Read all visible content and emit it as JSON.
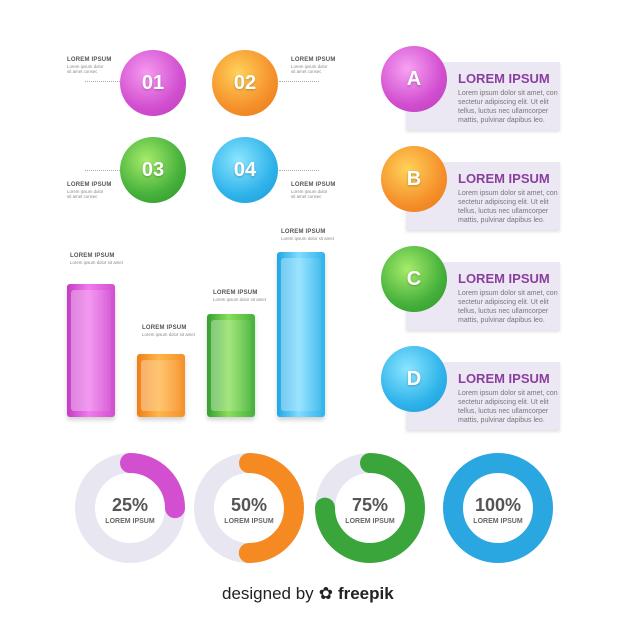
{
  "numbered": [
    {
      "label": "01",
      "title": "LOREM IPSUM",
      "text": [
        "Lorem ipsum dolor",
        "sit amet consec"
      ]
    },
    {
      "label": "02",
      "title": "LOREM IPSUM",
      "text": [
        "Lorem ipsum dolor",
        "sit amet consec"
      ]
    },
    {
      "label": "03",
      "title": "LOREM IPSUM",
      "text": [
        "Lorem ipsum dolor",
        "sit amet consec"
      ]
    },
    {
      "label": "04",
      "title": "LOREM IPSUM",
      "text": [
        "Lorem ipsum dolor",
        "sit amet consec"
      ]
    }
  ],
  "bars": [
    {
      "title": "LOREM IPSUM",
      "text": [
        "Lorem ipsum dolor sit amet"
      ]
    },
    {
      "title": "LOREM IPSUM",
      "text": [
        "Lorem ipsum dolor sit amet"
      ]
    },
    {
      "title": "LOREM IPSUM",
      "text": [
        "Lorem ipsum dolor sit amet"
      ]
    },
    {
      "title": "LOREM IPSUM",
      "text": [
        "Lorem ipsum dolor sit amet"
      ]
    }
  ],
  "letter_cards": [
    {
      "letter": "A",
      "title": "LOREM IPSUM",
      "lines": [
        "Lorem ipsum dolor sit amet, con",
        "sectetur adipiscing elit. Ut elit",
        "tellus, luctus nec ullamcorper",
        "mattis, pulvinar dapibus leo."
      ]
    },
    {
      "letter": "B",
      "title": "LOREM IPSUM",
      "lines": [
        "Lorem ipsum dolor sit amet, con",
        "sectetur adipiscing elit. Ut elit",
        "tellus, luctus nec ullamcorper",
        "mattis, pulvinar dapibus leo."
      ]
    },
    {
      "letter": "C",
      "title": "LOREM IPSUM",
      "lines": [
        "Lorem ipsum dolor sit amet, con",
        "sectetur adipiscing elit. Ut elit",
        "tellus, luctus nec ullamcorper",
        "mattis, pulvinar dapibus leo."
      ]
    },
    {
      "letter": "D",
      "title": "LOREM IPSUM",
      "lines": [
        "Lorem ipsum dolor sit amet, con",
        "sectetur adipiscing elit. Ut elit",
        "tellus, luctus nec ullamcorper",
        "mattis, pulvinar dapibus leo."
      ]
    }
  ],
  "progress": [
    {
      "value": "25%",
      "label": "LOREM IPSUM",
      "fraction": 0.25,
      "color": "#d24fd0"
    },
    {
      "value": "50%",
      "label": "LOREM IPSUM",
      "fraction": 0.5,
      "color": "#f58a22"
    },
    {
      "value": "75%",
      "label": "LOREM IPSUM",
      "fraction": 0.75,
      "color": "#3aa53a"
    },
    {
      "value": "100%",
      "label": "LOREM IPSUM",
      "fraction": 1.0,
      "color": "#2aa6e0"
    }
  ],
  "colors": {
    "pink": "#d450d2",
    "orange": "#f5902a",
    "green": "#46b13c",
    "blue": "#2fb3ea"
  },
  "footer": {
    "prefix": "designed by",
    "brand": "freepik"
  }
}
